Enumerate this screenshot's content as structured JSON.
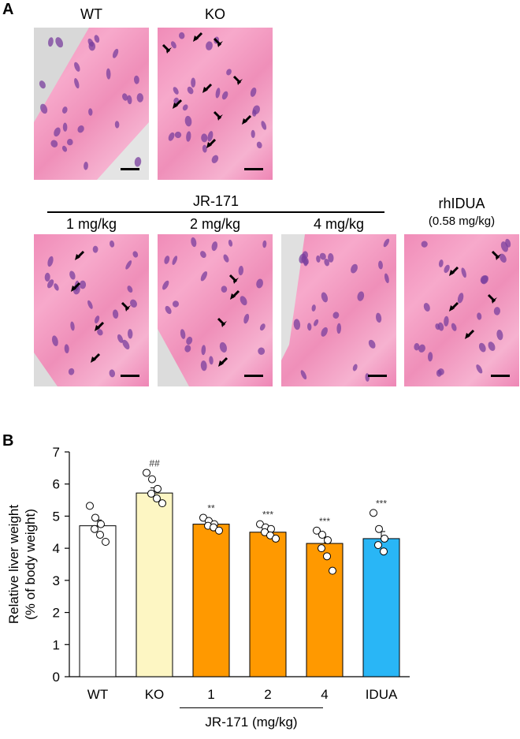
{
  "panel_a": {
    "label": "A",
    "top_row": [
      "WT",
      "KO"
    ],
    "group_label": "JR-171",
    "bottom_row": [
      "1 mg/kg",
      "2 mg/kg",
      "4 mg/kg"
    ],
    "rhidua_label": "rhIDUA",
    "rhidua_dose": "(0.58 mg/kg)"
  },
  "panel_b": {
    "label": "B",
    "group_label": "JR-171 (mg/kg)"
  },
  "chart_data": {
    "type": "bar",
    "categories": [
      "WT",
      "KO",
      "1",
      "2",
      "4",
      "IDUA"
    ],
    "values": [
      4.7,
      5.72,
      4.75,
      4.5,
      4.15,
      4.3
    ],
    "errors": [
      0.18,
      0.16,
      0.09,
      0.1,
      0.2,
      0.22
    ],
    "colors": [
      "#ffffff",
      "#fdf6c3",
      "#ff9900",
      "#ff9900",
      "#ff9900",
      "#29b6f6"
    ],
    "points": [
      [
        5.32,
        4.95,
        4.75,
        4.6,
        4.42,
        4.2
      ],
      [
        6.35,
        6.15,
        5.85,
        5.7,
        5.55,
        5.4
      ],
      [
        4.95,
        4.85,
        4.75,
        4.7,
        4.65,
        4.55
      ],
      [
        4.75,
        4.65,
        4.6,
        4.5,
        4.4,
        4.3
      ],
      [
        4.55,
        4.42,
        4.25,
        4.0,
        3.75,
        3.3
      ],
      [
        5.1,
        4.6,
        4.3,
        4.1,
        3.9
      ]
    ],
    "annotations": [
      "",
      "##",
      "**",
      "***",
      "***",
      "***"
    ],
    "ylabel_line1": "Relative liver weight",
    "ylabel_line2": "(% of  body weight)",
    "yticks": [
      0,
      1,
      2,
      3,
      4,
      5,
      6,
      7
    ],
    "ylim": [
      0,
      7
    ]
  }
}
